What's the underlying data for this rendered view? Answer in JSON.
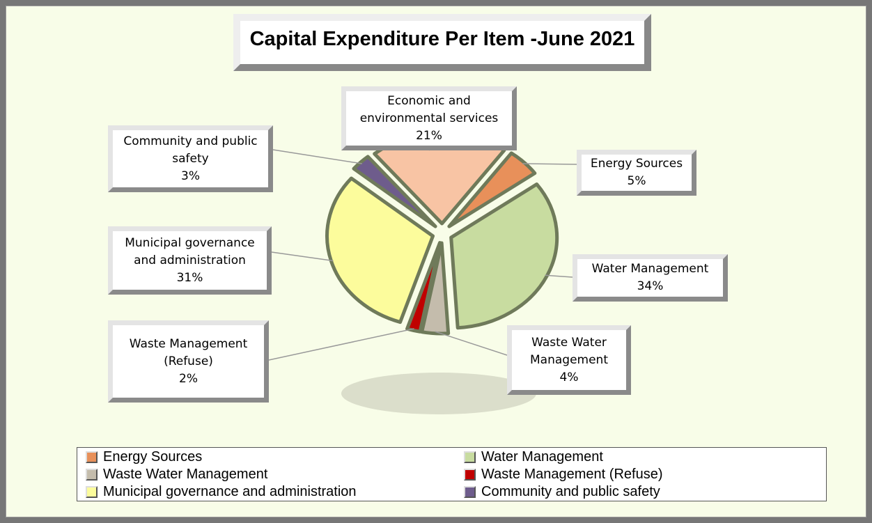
{
  "chart_data": {
    "type": "pie",
    "title": "Capital Expenditure Per Item -June 2021",
    "categories": [
      "Energy Sources",
      "Water Management",
      "Waste Water Management",
      "Waste Management (Refuse)",
      "Municipal governance and administration",
      "Community and public safety",
      "Economic and environmental services"
    ],
    "values": [
      5,
      34,
      4,
      2,
      31,
      3,
      21
    ],
    "value_labels": [
      "5%",
      "34%",
      "4%",
      "2%",
      "31%",
      "3%",
      "21%"
    ],
    "colors": [
      "#e8905a",
      "#c8dca0",
      "#c4bcac",
      "#c00000",
      "#fcfc9c",
      "#6e5c8c",
      "#f8c4a4"
    ]
  }
}
